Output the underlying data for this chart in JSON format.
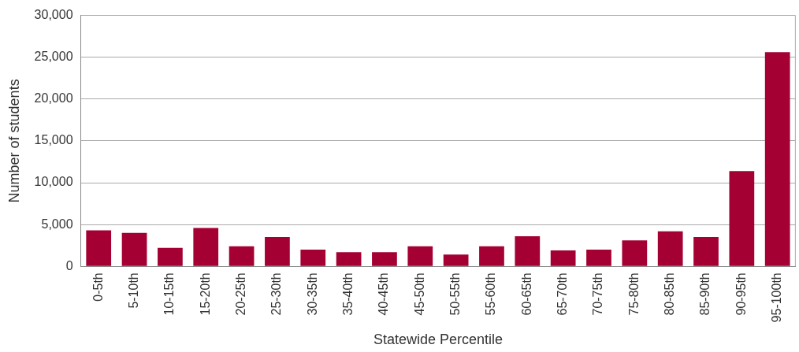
{
  "chart_data": {
    "type": "bar",
    "xlabel": "Statewide Percentile",
    "ylabel": "Number of students",
    "categories": [
      "0-5th",
      "5-10th",
      "10-15th",
      "15-20th",
      "20-25th",
      "25-30th",
      "30-35th",
      "35-40th",
      "40-45th",
      "45-50th",
      "50-55th",
      "55-60th",
      "60-65th",
      "65-70th",
      "70-75th",
      "75-80th",
      "80-85th",
      "85-90th",
      "90-95th",
      "95-100th"
    ],
    "values": [
      4300,
      4000,
      2200,
      4600,
      2400,
      3500,
      2000,
      1700,
      1700,
      2400,
      1400,
      2400,
      3600,
      1900,
      2000,
      3100,
      4200,
      3500,
      11400,
      25600
    ],
    "color": "#a50034",
    "ylim": [
      0,
      30000
    ],
    "yticks": [
      0,
      {
        "value": 5000,
        "label": "5,000"
      },
      {
        "value": 10000,
        "label": "10,000"
      },
      {
        "value": 15000,
        "label": "15,000"
      },
      {
        "value": 20000,
        "label": "20,000"
      },
      {
        "value": 25000,
        "label": "25,000"
      },
      {
        "value": 30000,
        "label": "30,000"
      }
    ],
    "grid": "y",
    "legend": false
  }
}
